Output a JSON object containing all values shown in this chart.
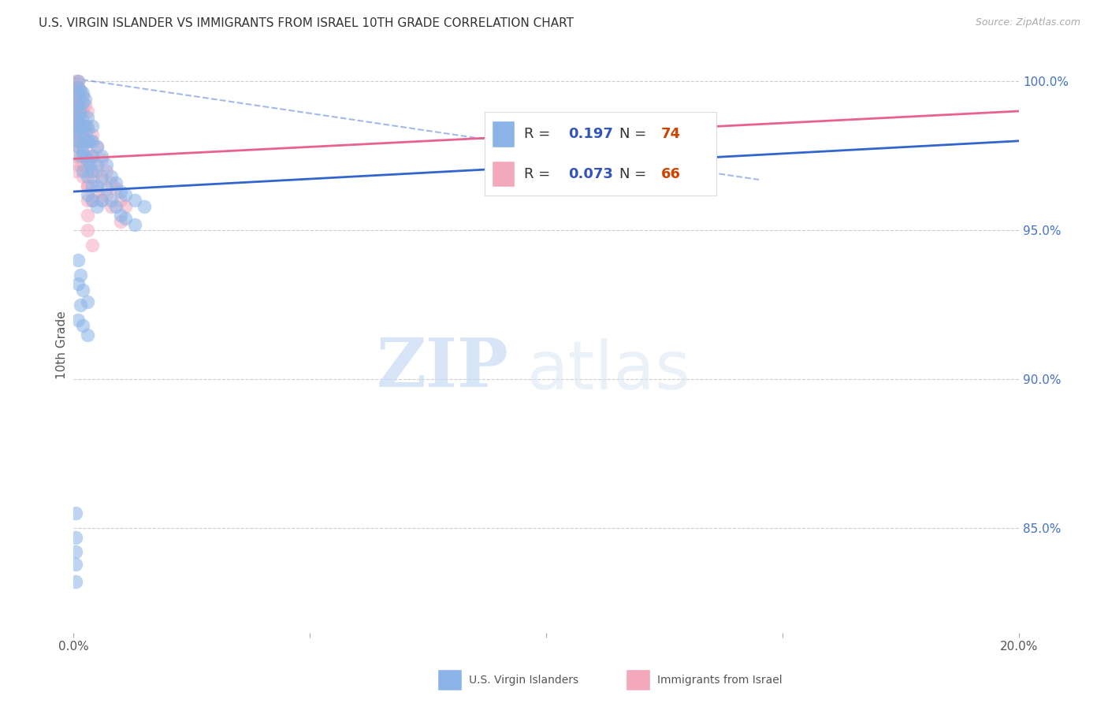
{
  "title": "U.S. VIRGIN ISLANDER VS IMMIGRANTS FROM ISRAEL 10TH GRADE CORRELATION CHART",
  "source": "Source: ZipAtlas.com",
  "ylabel": "10th Grade",
  "yaxis_values": [
    1.0,
    0.95,
    0.9,
    0.85
  ],
  "xlim": [
    0.0,
    0.2
  ],
  "ylim": [
    0.815,
    1.008
  ],
  "legend_blue_r": "0.197",
  "legend_blue_n": "74",
  "legend_pink_r": "0.073",
  "legend_pink_n": "66",
  "legend_label_blue": "U.S. Virgin Islanders",
  "legend_label_pink": "Immigrants from Israel",
  "watermark_zip": "ZIP",
  "watermark_atlas": "atlas",
  "blue_color": "#8ab4e8",
  "pink_color": "#f4a8bc",
  "blue_line_color": "#3366cc",
  "pink_line_color": "#e8638c",
  "blue_scatter_x": [
    0.001,
    0.001,
    0.001,
    0.001,
    0.001,
    0.001,
    0.001,
    0.001,
    0.001,
    0.001,
    0.001,
    0.001,
    0.0015,
    0.0015,
    0.0015,
    0.0015,
    0.002,
    0.002,
    0.002,
    0.002,
    0.002,
    0.002,
    0.002,
    0.0025,
    0.0025,
    0.0025,
    0.003,
    0.003,
    0.003,
    0.003,
    0.003,
    0.003,
    0.0035,
    0.0035,
    0.004,
    0.004,
    0.004,
    0.004,
    0.004,
    0.004,
    0.005,
    0.005,
    0.005,
    0.005,
    0.006,
    0.006,
    0.006,
    0.007,
    0.007,
    0.008,
    0.008,
    0.009,
    0.009,
    0.01,
    0.01,
    0.011,
    0.011,
    0.013,
    0.013,
    0.015,
    0.001,
    0.001,
    0.001,
    0.0015,
    0.0015,
    0.002,
    0.002,
    0.003,
    0.003,
    0.0005,
    0.0005,
    0.0005,
    0.0005,
    0.0005
  ],
  "blue_scatter_y": [
    1.0,
    0.998,
    0.996,
    0.994,
    0.992,
    0.99,
    0.988,
    0.986,
    0.984,
    0.982,
    0.98,
    0.978,
    0.997,
    0.99,
    0.985,
    0.975,
    0.996,
    0.993,
    0.987,
    0.983,
    0.979,
    0.976,
    0.97,
    0.994,
    0.985,
    0.975,
    0.988,
    0.984,
    0.98,
    0.974,
    0.968,
    0.962,
    0.98,
    0.972,
    0.985,
    0.98,
    0.975,
    0.97,
    0.965,
    0.96,
    0.978,
    0.972,
    0.965,
    0.958,
    0.975,
    0.968,
    0.96,
    0.972,
    0.964,
    0.968,
    0.96,
    0.966,
    0.958,
    0.963,
    0.955,
    0.962,
    0.954,
    0.96,
    0.952,
    0.958,
    0.94,
    0.932,
    0.92,
    0.935,
    0.925,
    0.93,
    0.918,
    0.926,
    0.915,
    0.855,
    0.847,
    0.842,
    0.838,
    0.832
  ],
  "pink_scatter_x": [
    0.001,
    0.001,
    0.001,
    0.001,
    0.001,
    0.001,
    0.001,
    0.001,
    0.001,
    0.001,
    0.0015,
    0.0015,
    0.0015,
    0.002,
    0.002,
    0.002,
    0.002,
    0.002,
    0.0025,
    0.0025,
    0.003,
    0.003,
    0.003,
    0.003,
    0.003,
    0.003,
    0.003,
    0.003,
    0.004,
    0.004,
    0.004,
    0.004,
    0.005,
    0.005,
    0.005,
    0.006,
    0.006,
    0.006,
    0.007,
    0.007,
    0.008,
    0.008,
    0.009,
    0.01,
    0.01,
    0.011,
    0.0005,
    0.0005,
    0.0005,
    0.0005,
    0.0005,
    0.0005,
    0.0005,
    0.0005,
    0.0005,
    0.001,
    0.001,
    0.002,
    0.002,
    0.003,
    0.003,
    0.1,
    0.105,
    0.108,
    0.003,
    0.004
  ],
  "pink_scatter_y": [
    1.0,
    0.998,
    0.996,
    0.994,
    0.992,
    0.99,
    0.988,
    0.986,
    0.984,
    0.982,
    0.997,
    0.99,
    0.982,
    0.995,
    0.99,
    0.985,
    0.978,
    0.972,
    0.992,
    0.982,
    0.99,
    0.985,
    0.98,
    0.975,
    0.97,
    0.965,
    0.96,
    0.955,
    0.982,
    0.975,
    0.968,
    0.96,
    0.978,
    0.97,
    0.963,
    0.974,
    0.967,
    0.96,
    0.97,
    0.962,
    0.966,
    0.958,
    0.964,
    0.96,
    0.953,
    0.958,
    1.0,
    0.997,
    0.995,
    0.992,
    0.988,
    0.985,
    0.98,
    0.975,
    0.97,
    0.978,
    0.972,
    0.975,
    0.968,
    0.972,
    0.965,
    0.984,
    0.98,
    0.976,
    0.95,
    0.945
  ],
  "blue_trend_x": [
    0.0,
    0.2
  ],
  "blue_trend_y": [
    0.963,
    0.98
  ],
  "pink_trend_x": [
    0.0,
    0.2
  ],
  "pink_trend_y": [
    0.974,
    0.99
  ],
  "dash_line_x": [
    0.0,
    0.145
  ],
  "dash_line_y": [
    1.001,
    0.967
  ]
}
